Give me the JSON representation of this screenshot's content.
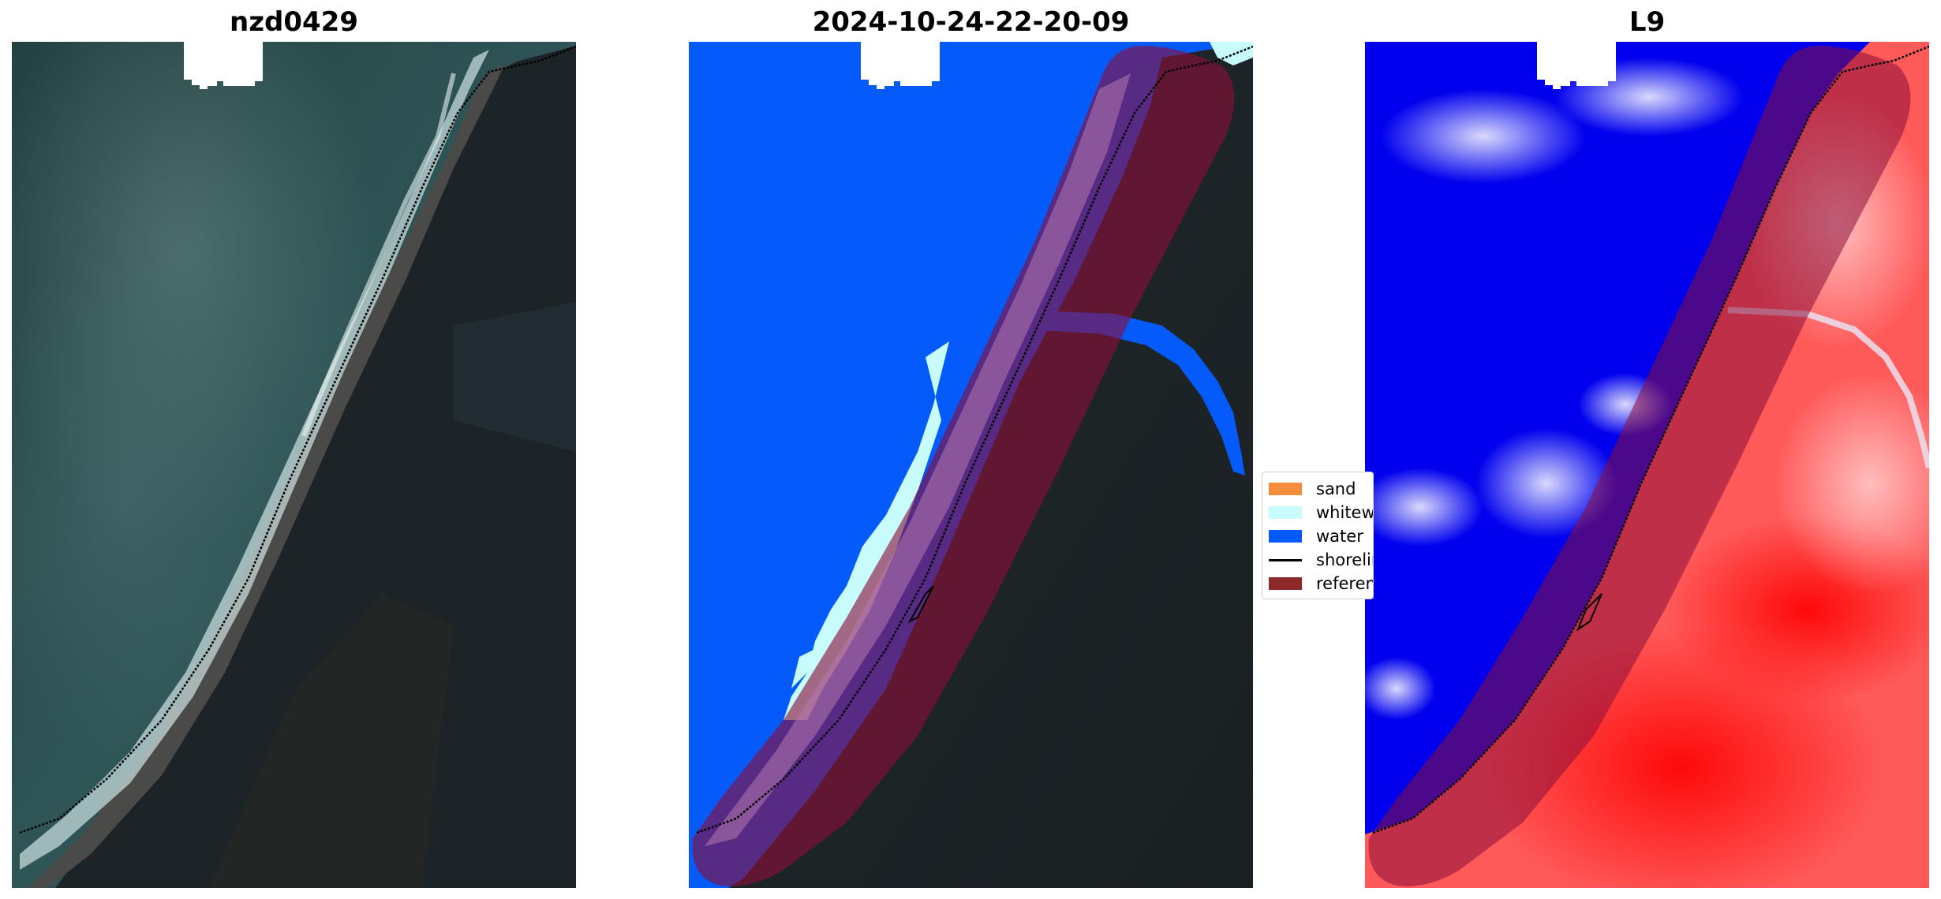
{
  "panels": [
    {
      "title": "nzd0429"
    },
    {
      "title": "2024-10-24-22-20-09"
    },
    {
      "title": "L9"
    }
  ],
  "legend": {
    "items": [
      {
        "label": "sand",
        "color": "#f68d3c"
      },
      {
        "label": "whitewater",
        "color": "#c8fcfc"
      },
      {
        "label": "water",
        "color": "#055bfa"
      },
      {
        "label": "shoreline",
        "color": "#000000"
      },
      {
        "label": "reference",
        "color": "#8c2a2a"
      }
    ]
  },
  "colors": {
    "ocean": "#2b4a4d",
    "land": "#1b2226",
    "water_class": "#055bfa",
    "reference_buffer": "#8a0e3a",
    "index_negative": "#0000ee",
    "index_positive": "#ff1b1b"
  }
}
